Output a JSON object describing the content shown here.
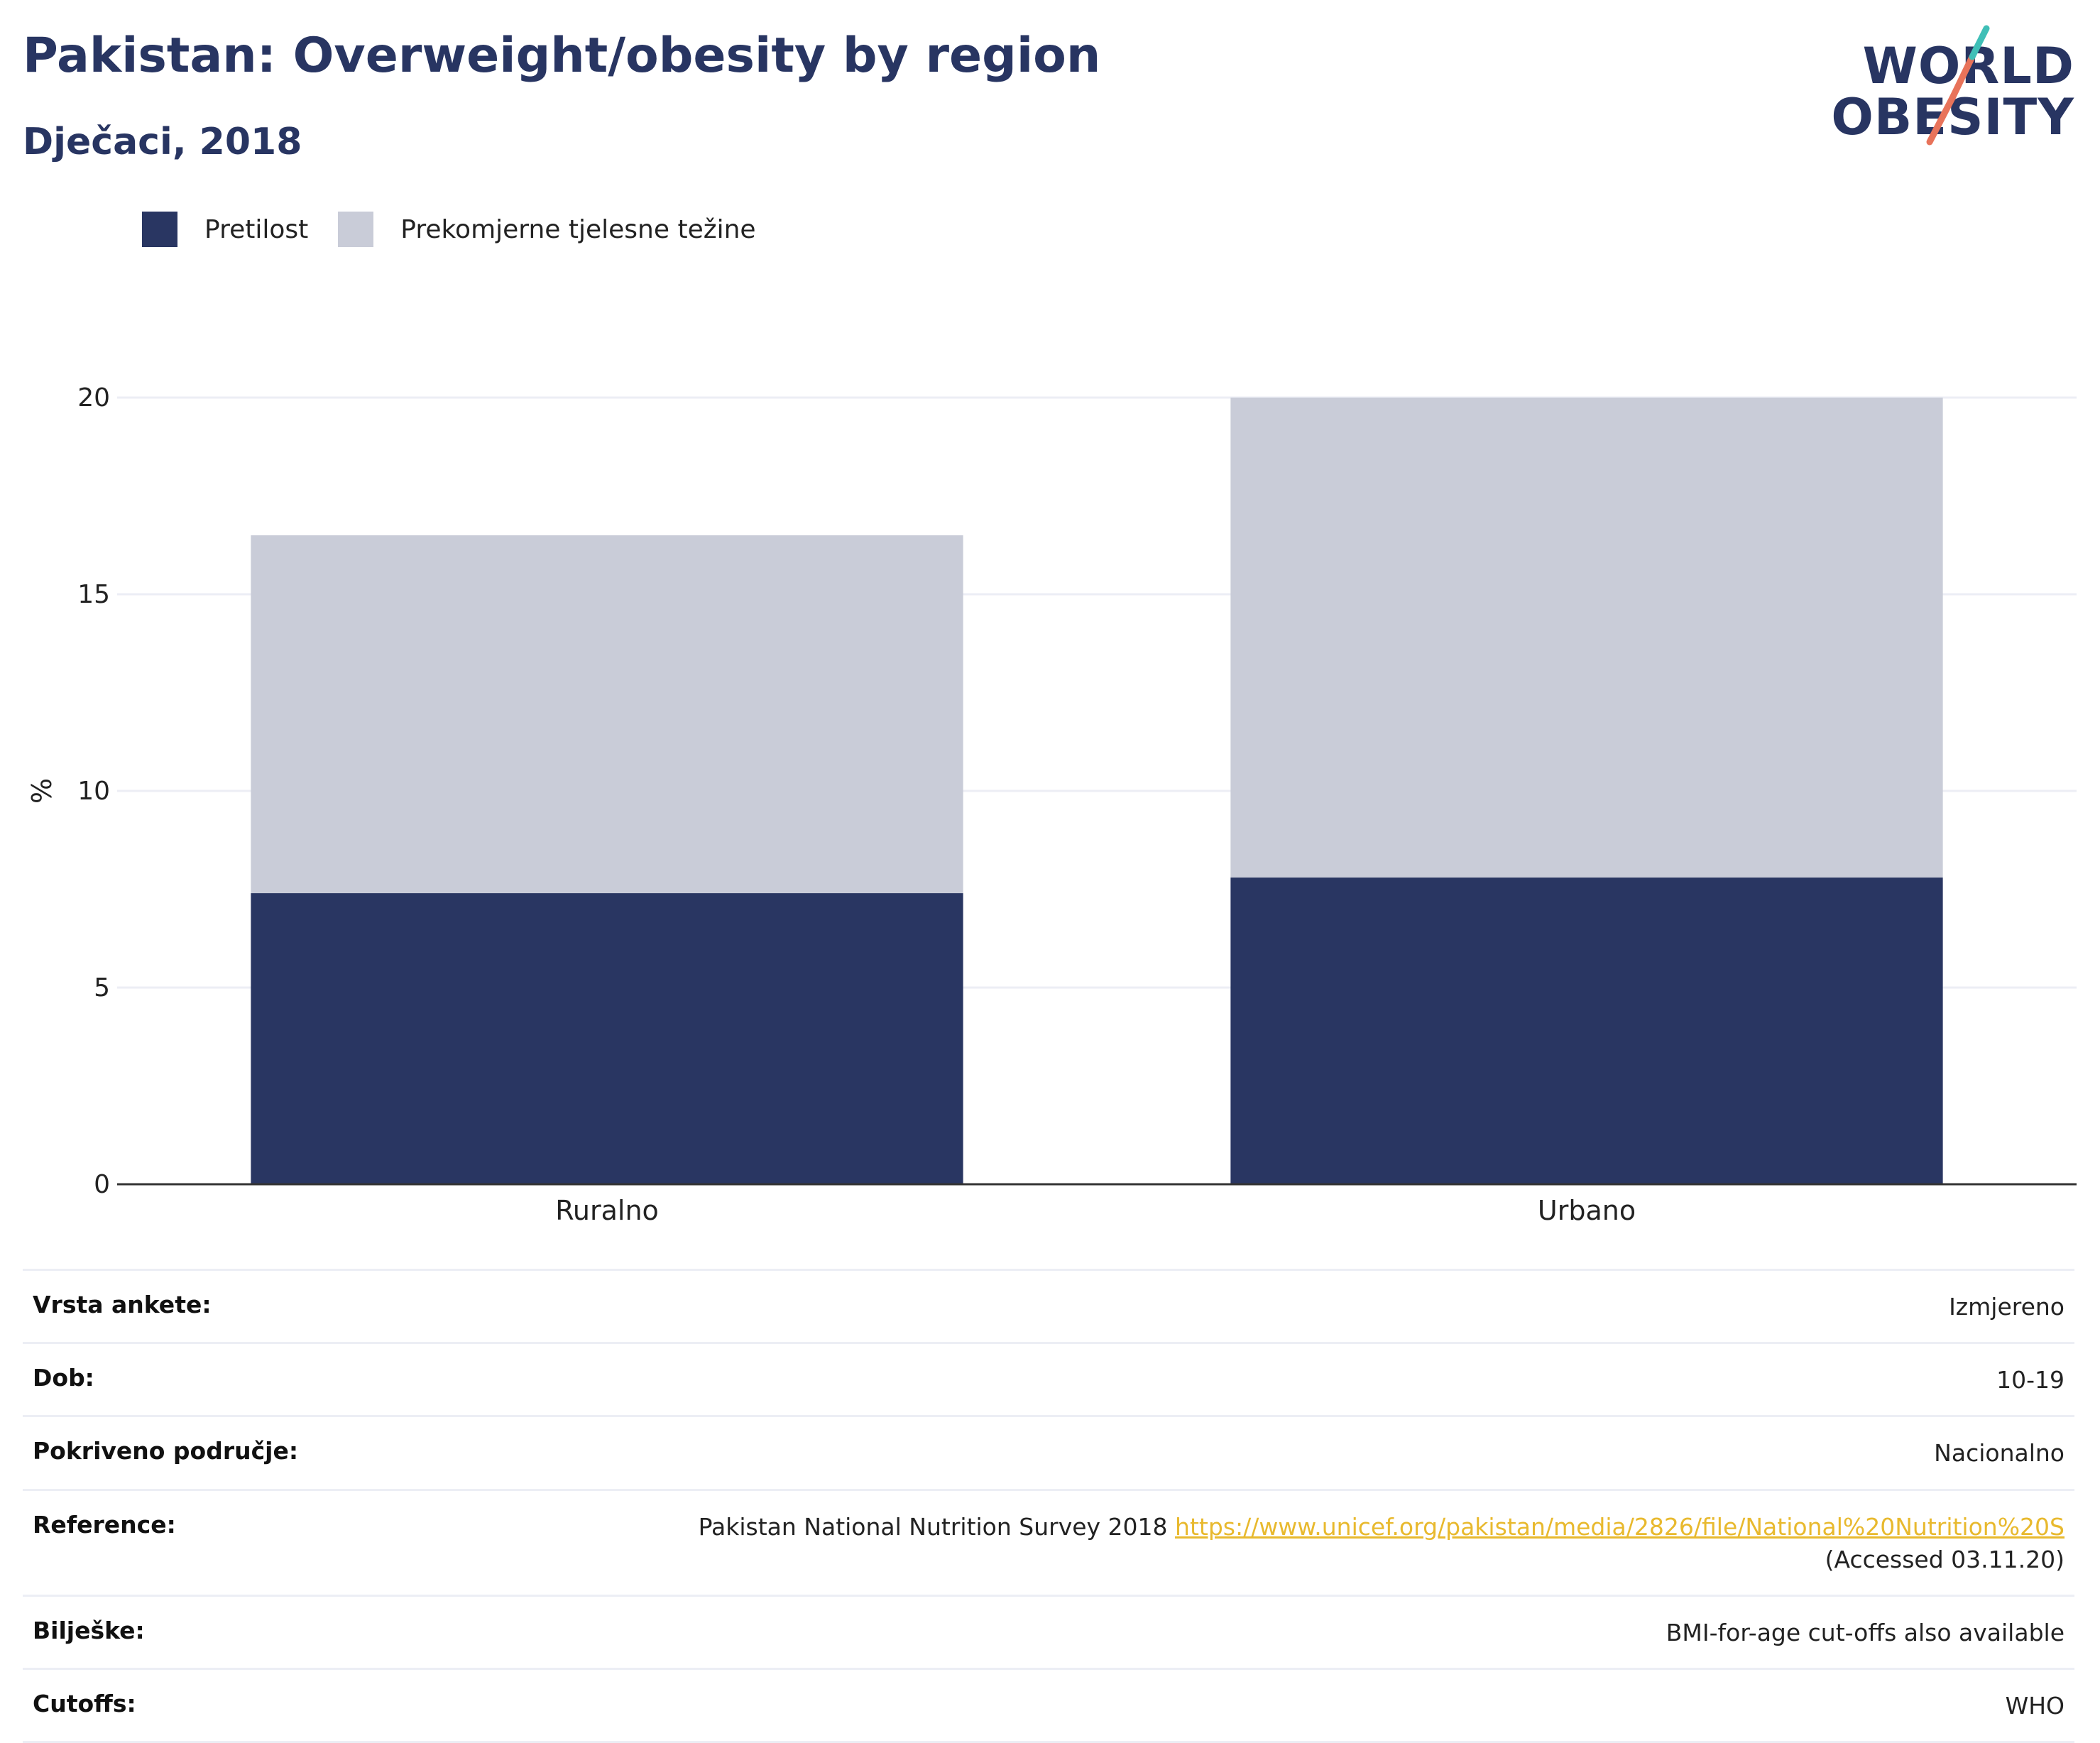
{
  "header": {
    "title": "Pakistan: Overweight/obesity by region",
    "subtitle": "Dječaci, 2018"
  },
  "logo": {
    "line1": "WORLD",
    "line2": "OBESITY",
    "accent_teal": "#3fbfb7",
    "accent_coral": "#e8735a"
  },
  "colors": {
    "obesity": "#293662",
    "overweight": "#c9ccd8",
    "grid": "#eceef5",
    "axis": "#333333",
    "link": "#e8b92e"
  },
  "legend": [
    {
      "label": "Pretilost",
      "color": "#293662"
    },
    {
      "label": "Prekomjerne tjelesne težine",
      "color": "#c9ccd8"
    }
  ],
  "chart_data": {
    "type": "bar",
    "stacked": true,
    "categories": [
      "Ruralno",
      "Urbano"
    ],
    "series": [
      {
        "name": "Pretilost",
        "values": [
          7.4,
          7.8
        ]
      },
      {
        "name": "Prekomjerne tjelesne težine",
        "values": [
          9.1,
          12.2
        ]
      }
    ],
    "ylabel": "%",
    "ylim": [
      0,
      20
    ],
    "yticks": [
      0,
      5,
      10,
      15,
      20
    ],
    "grid": true,
    "legend_position": "top-left"
  },
  "metadata": [
    {
      "key": "Vrsta ankete:",
      "value": "Izmjereno"
    },
    {
      "key": "Dob:",
      "value": "10-19"
    },
    {
      "key": "Pokriveno područje:",
      "value": "Nacionalno"
    },
    {
      "key": "Reference:",
      "value_prefix": "Pakistan National Nutrition Survey 2018 ",
      "link": "https://www.unicef.org/pakistan/media/2826/file/National%20Nutrition%20S",
      "value_suffix": " (Accessed 03.11.20)"
    },
    {
      "key": "Bilješke:",
      "value": "BMI-for-age cut-offs also available"
    },
    {
      "key": "Cutoffs:",
      "value": "WHO"
    }
  ]
}
